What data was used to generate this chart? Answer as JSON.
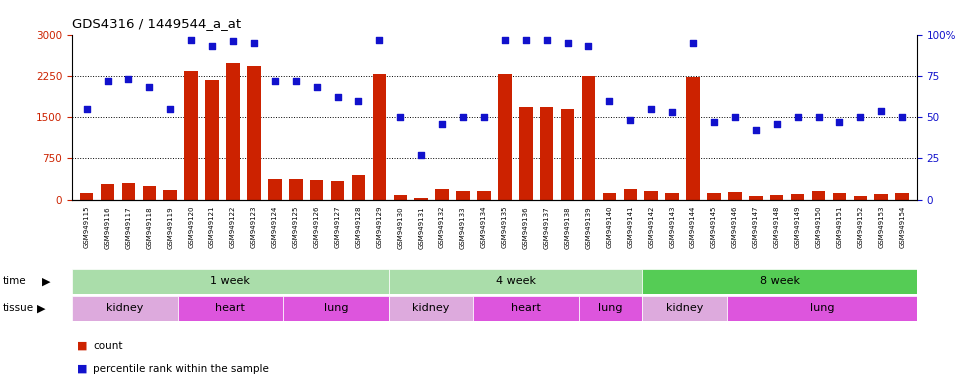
{
  "title": "GDS4316 / 1449544_a_at",
  "samples": [
    "GSM949115",
    "GSM949116",
    "GSM949117",
    "GSM949118",
    "GSM949119",
    "GSM949120",
    "GSM949121",
    "GSM949122",
    "GSM949123",
    "GSM949124",
    "GSM949125",
    "GSM949126",
    "GSM949127",
    "GSM949128",
    "GSM949129",
    "GSM949130",
    "GSM949131",
    "GSM949132",
    "GSM949133",
    "GSM949134",
    "GSM949135",
    "GSM949136",
    "GSM949137",
    "GSM949138",
    "GSM949139",
    "GSM949140",
    "GSM949141",
    "GSM949142",
    "GSM949143",
    "GSM949144",
    "GSM949145",
    "GSM949146",
    "GSM949147",
    "GSM949148",
    "GSM949149",
    "GSM949150",
    "GSM949151",
    "GSM949152",
    "GSM949153",
    "GSM949154"
  ],
  "count": [
    120,
    280,
    310,
    250,
    180,
    2330,
    2180,
    2480,
    2430,
    380,
    380,
    360,
    340,
    440,
    2280,
    80,
    30,
    190,
    160,
    150,
    2280,
    1680,
    1680,
    1650,
    2250,
    120,
    190,
    150,
    130,
    2230,
    120,
    140,
    70,
    90,
    100,
    160,
    120,
    70,
    110,
    120
  ],
  "percentile": [
    55,
    72,
    73,
    68,
    55,
    97,
    93,
    96,
    95,
    72,
    72,
    68,
    62,
    60,
    97,
    50,
    27,
    46,
    50,
    50,
    97,
    97,
    97,
    95,
    93,
    60,
    48,
    55,
    53,
    95,
    47,
    50,
    42,
    46,
    50,
    50,
    47,
    50,
    54,
    50
  ],
  "time_groups": [
    {
      "label": "1 week",
      "start": 0,
      "end": 15,
      "color": "#aaddaa"
    },
    {
      "label": "4 week",
      "start": 15,
      "end": 27,
      "color": "#aaddaa"
    },
    {
      "label": "8 week",
      "start": 27,
      "end": 40,
      "color": "#55cc55"
    }
  ],
  "tissue_groups": [
    {
      "label": "kidney",
      "start": 0,
      "end": 5,
      "color": "#ddaadd"
    },
    {
      "label": "heart",
      "start": 5,
      "end": 10,
      "color": "#dd55dd"
    },
    {
      "label": "lung",
      "start": 10,
      "end": 15,
      "color": "#dd55dd"
    },
    {
      "label": "kidney",
      "start": 15,
      "end": 19,
      "color": "#ddaadd"
    },
    {
      "label": "heart",
      "start": 19,
      "end": 24,
      "color": "#dd55dd"
    },
    {
      "label": "lung",
      "start": 24,
      "end": 27,
      "color": "#dd55dd"
    },
    {
      "label": "kidney",
      "start": 27,
      "end": 31,
      "color": "#ddaadd"
    },
    {
      "label": "lung",
      "start": 31,
      "end": 40,
      "color": "#dd55dd"
    }
  ],
  "bar_color": "#cc2200",
  "dot_color": "#1111cc",
  "ylim_left": [
    0,
    3000
  ],
  "ylim_right": [
    0,
    100
  ],
  "yticks_left": [
    0,
    750,
    1500,
    2250,
    3000
  ],
  "yticks_right": [
    0,
    25,
    50,
    75,
    100
  ],
  "background_color": "#ffffff"
}
